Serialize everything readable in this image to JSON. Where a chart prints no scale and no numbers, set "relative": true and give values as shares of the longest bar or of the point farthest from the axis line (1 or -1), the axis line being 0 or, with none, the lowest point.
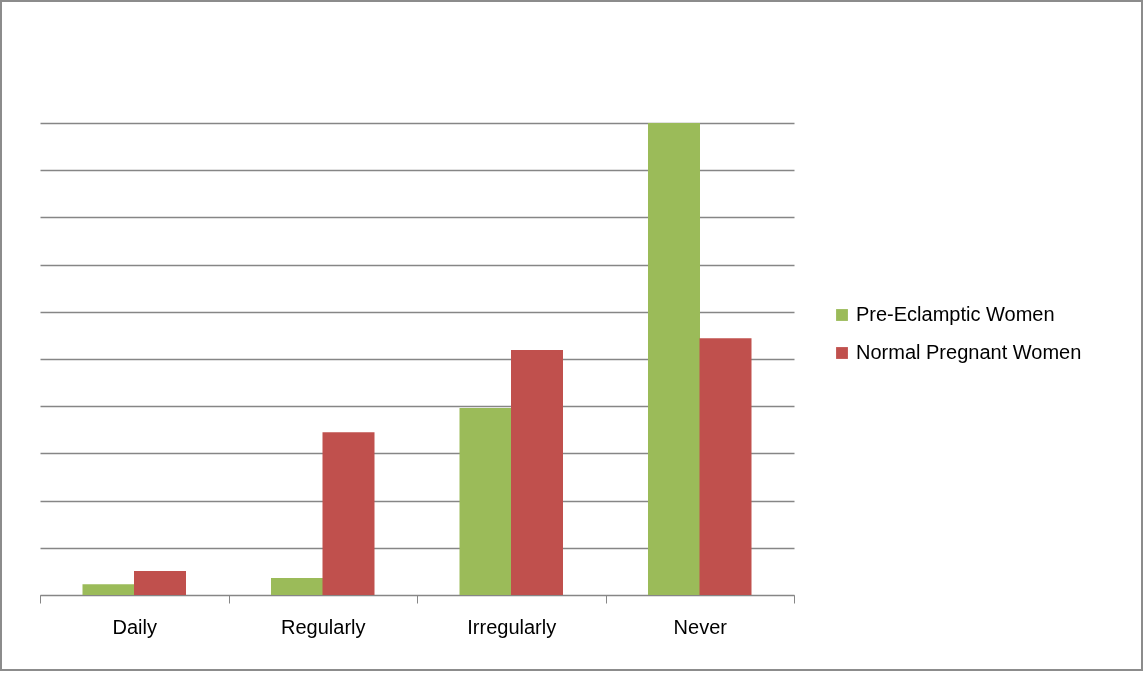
{
  "chart_data": {
    "type": "bar",
    "relative": true,
    "categories": [
      "Daily",
      "Regularly",
      "Irregularly",
      "Never"
    ],
    "series": [
      {
        "name": "Pre-Eclamptic Women",
        "color": "#9bbb59",
        "values": [
          0.023,
          0.036,
          0.396,
          1
        ]
      },
      {
        "name": "Normal Pregnant Women",
        "color": "#c0504d",
        "values": [
          0.051,
          0.345,
          0.519,
          0.544
        ]
      }
    ],
    "grid": "y",
    "legend": "right"
  }
}
